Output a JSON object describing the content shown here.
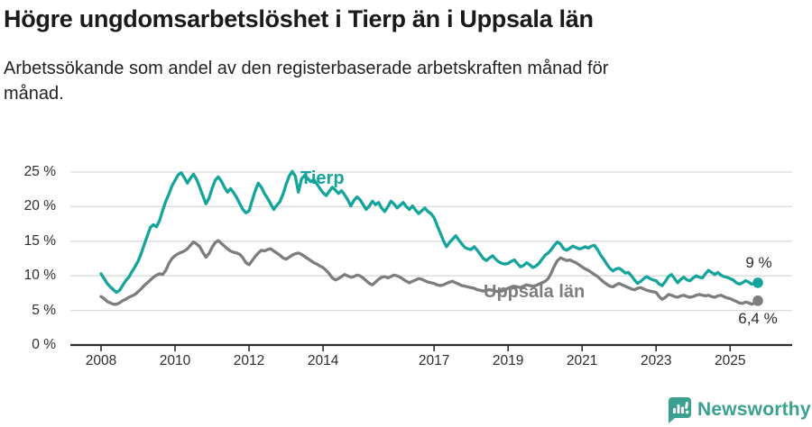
{
  "header": {
    "title": "Högre ungdomsarbetslöshet i Tierp än i Uppsala län",
    "subtitle": "Arbetssökande som andel av den registerbaserade arbetskraften månad för månad."
  },
  "chart_data": {
    "type": "line",
    "unit": "%",
    "title": "Högre ungdomsarbetslöshet i Tierp än i Uppsala län",
    "x_start_year": 2008,
    "x_end": "2025 (oktober)",
    "points_per_year": 12,
    "ylim": [
      0,
      25
    ],
    "grid": true,
    "y_ticks": [
      0,
      5,
      10,
      15,
      20,
      25
    ],
    "y_tick_labels": [
      "0 %",
      "5 %",
      "10 %",
      "15 %",
      "20 %",
      "25 %"
    ],
    "x_tick_years": [
      2008,
      2010,
      2012,
      2014,
      2017,
      2019,
      2021,
      2023,
      2025
    ],
    "x_tick_labels": [
      "2008",
      "2010",
      "2012",
      "2014",
      "2017",
      "2019",
      "2021",
      "2023",
      "2025"
    ],
    "axis_color": "#2e2e2e",
    "grid_color": "#d9d9d9",
    "series": [
      {
        "name": "Tierp",
        "color": "#14a49c",
        "end_label": "9 %",
        "end_value": 9.0,
        "values": [
          10.3,
          9.6,
          8.9,
          8.4,
          8.0,
          7.6,
          7.9,
          8.6,
          9.3,
          9.8,
          10.6,
          11.3,
          12.1,
          13.2,
          14.5,
          15.8,
          17.0,
          17.4,
          17.1,
          18.0,
          19.5,
          20.8,
          21.8,
          23.0,
          23.8,
          24.6,
          24.9,
          24.2,
          23.4,
          24.1,
          24.7,
          23.9,
          22.8,
          21.6,
          20.4,
          21.2,
          22.6,
          23.8,
          24.3,
          23.7,
          22.8,
          22.1,
          22.6,
          22.0,
          21.3,
          20.4,
          19.6,
          19.1,
          19.4,
          20.9,
          22.3,
          23.4,
          22.8,
          21.9,
          21.2,
          20.4,
          19.6,
          20.2,
          20.7,
          21.8,
          23.2,
          24.4,
          25.1,
          24.4,
          22.1,
          24.0,
          24.5,
          24.1,
          23.6,
          23.9,
          23.3,
          22.6,
          22.0,
          21.6,
          22.2,
          22.8,
          22.4,
          21.9,
          22.3,
          21.7,
          21.0,
          20.1,
          20.9,
          21.4,
          21.0,
          20.3,
          19.6,
          20.1,
          20.8,
          20.3,
          20.6,
          19.8,
          19.3,
          20.0,
          20.8,
          20.4,
          19.8,
          20.2,
          20.6,
          20.0,
          19.6,
          20.1,
          19.5,
          19.0,
          19.4,
          19.8,
          19.3,
          19.0,
          18.4,
          17.3,
          16.2,
          15.1,
          14.2,
          14.8,
          15.3,
          15.8,
          15.2,
          14.6,
          14.1,
          13.9,
          13.8,
          14.2,
          13.7,
          13.1,
          12.5,
          12.2,
          12.6,
          12.9,
          12.4,
          12.0,
          11.8,
          11.7,
          11.8,
          12.1,
          12.3,
          11.8,
          11.3,
          11.5,
          11.9,
          11.6,
          11.2,
          11.4,
          11.8,
          12.4,
          13.0,
          13.3,
          13.8,
          14.4,
          14.9,
          14.6,
          13.9,
          13.7,
          14.0,
          14.3,
          14.1,
          13.9,
          14.0,
          14.2,
          14.0,
          14.3,
          14.4,
          13.8,
          13.0,
          12.4,
          11.7,
          11.1,
          10.7,
          11.0,
          11.1,
          10.8,
          10.4,
          10.5,
          10.0,
          9.4,
          8.9,
          9.2,
          9.6,
          9.9,
          9.6,
          9.4,
          9.3,
          8.8,
          8.6,
          9.2,
          9.9,
          10.2,
          9.6,
          9.0,
          9.5,
          9.8,
          9.4,
          9.3,
          9.7,
          10.0,
          9.8,
          9.7,
          10.3,
          10.8,
          10.5,
          10.2,
          10.5,
          10.1,
          9.9,
          9.8,
          9.6,
          9.4,
          9.0,
          8.8,
          9.0,
          9.3,
          9.1,
          8.8,
          8.9,
          9.0
        ]
      },
      {
        "name": "Uppsala län",
        "color": "#7d7d7d",
        "end_label": "6,4 %",
        "end_value": 6.4,
        "values": [
          7.0,
          6.7,
          6.3,
          6.1,
          5.9,
          5.9,
          6.1,
          6.4,
          6.6,
          6.9,
          7.1,
          7.3,
          7.7,
          8.1,
          8.6,
          9.0,
          9.4,
          9.8,
          10.1,
          10.3,
          10.2,
          10.8,
          11.8,
          12.5,
          12.9,
          13.2,
          13.4,
          13.6,
          13.9,
          14.4,
          14.9,
          14.6,
          14.2,
          13.4,
          12.7,
          13.2,
          14.1,
          14.8,
          15.1,
          14.7,
          14.3,
          13.9,
          13.6,
          13.4,
          13.3,
          13.1,
          12.6,
          11.9,
          11.6,
          12.2,
          12.8,
          13.3,
          13.7,
          13.6,
          13.8,
          13.9,
          13.6,
          13.3,
          13.0,
          12.6,
          12.4,
          12.7,
          13.0,
          13.2,
          13.3,
          13.1,
          12.8,
          12.5,
          12.2,
          11.9,
          11.7,
          11.4,
          11.2,
          10.8,
          10.3,
          9.7,
          9.4,
          9.6,
          9.9,
          10.2,
          10.0,
          9.8,
          9.9,
          10.1,
          10.0,
          9.7,
          9.3,
          8.9,
          8.7,
          9.1,
          9.5,
          9.8,
          9.9,
          9.7,
          9.9,
          10.1,
          10.0,
          9.8,
          9.5,
          9.2,
          9.0,
          9.2,
          9.4,
          9.6,
          9.5,
          9.3,
          9.1,
          9.0,
          8.9,
          8.7,
          8.6,
          8.7,
          8.9,
          9.1,
          9.2,
          9.0,
          8.8,
          8.6,
          8.5,
          8.4,
          8.3,
          8.2,
          8.0,
          7.9,
          7.8,
          7.9,
          8.0,
          7.9,
          7.8,
          7.7,
          7.8,
          8.0,
          8.2,
          8.4,
          8.5,
          8.4,
          8.3,
          8.5,
          8.7,
          8.6,
          8.5,
          8.6,
          8.8,
          9.0,
          9.2,
          9.6,
          10.4,
          11.4,
          12.2,
          12.6,
          12.4,
          12.2,
          12.3,
          12.1,
          11.9,
          11.6,
          11.3,
          11.0,
          10.8,
          10.5,
          10.2,
          9.9,
          9.5,
          9.1,
          8.8,
          8.5,
          8.4,
          8.7,
          8.9,
          8.7,
          8.5,
          8.3,
          8.1,
          8.0,
          8.2,
          8.3,
          8.1,
          7.9,
          7.8,
          7.7,
          7.6,
          7.0,
          6.6,
          6.9,
          7.3,
          7.2,
          7.0,
          6.9,
          7.1,
          7.2,
          7.0,
          6.9,
          7.0,
          7.2,
          7.3,
          7.2,
          7.1,
          7.2,
          7.0,
          6.9,
          7.1,
          7.2,
          7.0,
          6.8,
          6.7,
          6.5,
          6.3,
          6.1,
          6.0,
          6.2,
          6.1,
          5.9,
          6.1,
          6.4
        ]
      }
    ]
  },
  "footer": {
    "brand": "Newsworthy",
    "logo_color": "#3aa08f"
  }
}
